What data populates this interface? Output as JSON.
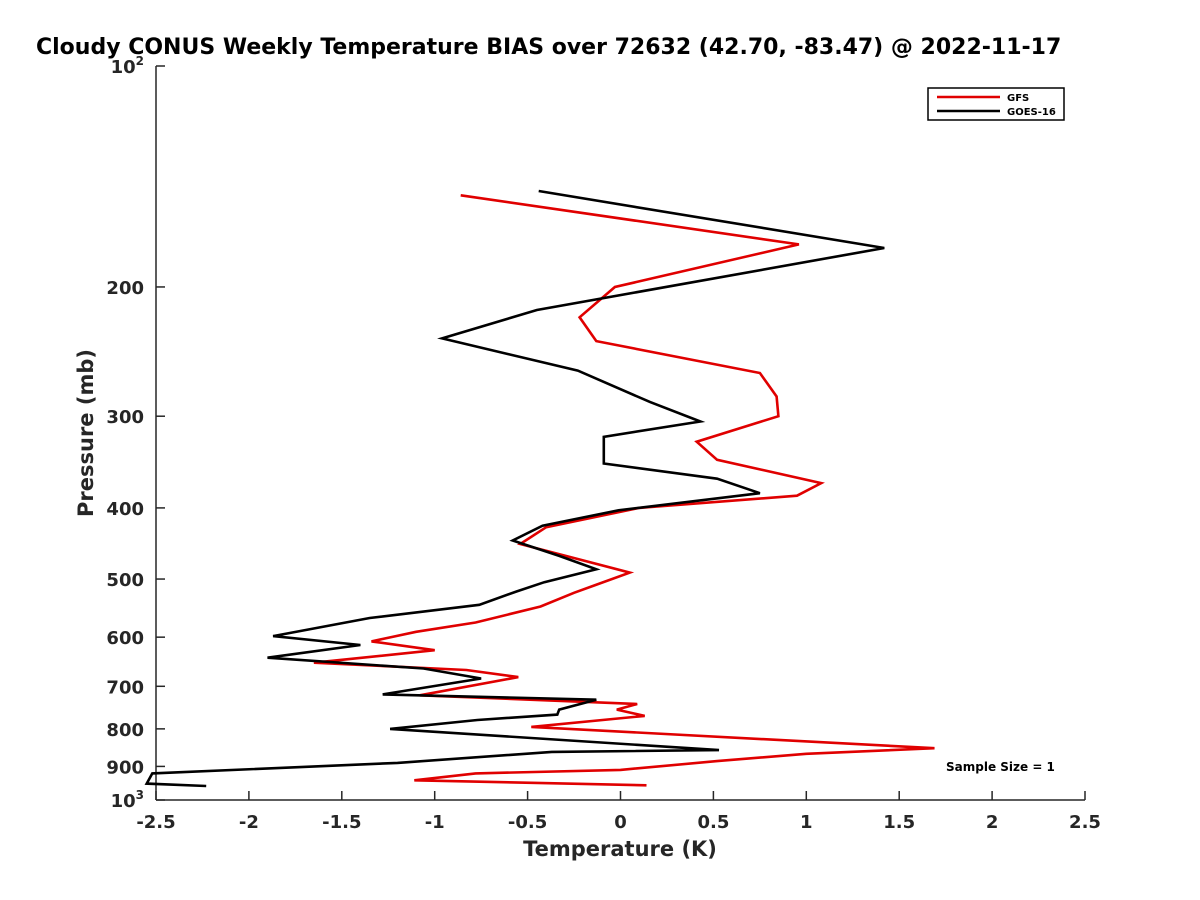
{
  "chart_data": {
    "type": "line",
    "title": "Cloudy CONUS Weekly Temperature BIAS over 72632 (42.70, -83.47) @ 2022-11-17",
    "xlabel": "Temperature (K)",
    "ylabel": "Pressure (mb)",
    "xlim": [
      -2.5,
      2.5
    ],
    "ylim": [
      100,
      1000
    ],
    "y_scale": "log",
    "y_reversed": true,
    "x_ticks": [
      "-2.5",
      "-2",
      "-1.5",
      "-1",
      "-0.5",
      "0",
      "0.5",
      "1",
      "1.5",
      "2",
      "2.5"
    ],
    "y_ticks": [
      {
        "value": 100,
        "base": "10",
        "exp": "2"
      },
      {
        "value": 200,
        "label": "200"
      },
      {
        "value": 300,
        "label": "300"
      },
      {
        "value": 400,
        "label": "400"
      },
      {
        "value": 500,
        "label": "500"
      },
      {
        "value": 600,
        "label": "600"
      },
      {
        "value": 700,
        "label": "700"
      },
      {
        "value": 800,
        "label": "800"
      },
      {
        "value": 900,
        "label": "900"
      },
      {
        "value": 1000,
        "base": "10",
        "exp": "3"
      }
    ],
    "grid": false,
    "legend_position": "top-right",
    "annotation": "Sample Size = 1",
    "series": [
      {
        "name": "GFS",
        "color": "#e00000",
        "points": [
          [
            -0.86,
            150
          ],
          [
            0.96,
            175
          ],
          [
            -0.03,
            200
          ],
          [
            -0.22,
            220
          ],
          [
            -0.13,
            237
          ],
          [
            0.75,
            262
          ],
          [
            0.84,
            282
          ],
          [
            0.85,
            300
          ],
          [
            0.41,
            325
          ],
          [
            0.52,
            344
          ],
          [
            1.08,
            370
          ],
          [
            0.95,
            385
          ],
          [
            0.1,
            400
          ],
          [
            -0.4,
            425
          ],
          [
            -0.54,
            448
          ],
          [
            0.05,
            490
          ],
          [
            -0.14,
            510
          ],
          [
            -0.25,
            522
          ],
          [
            -0.43,
            545
          ],
          [
            -0.78,
            573
          ],
          [
            -1.1,
            590
          ],
          [
            -1.34,
            608
          ],
          [
            -1.0,
            625
          ],
          [
            -1.65,
            650
          ],
          [
            -0.83,
            665
          ],
          [
            -0.55,
            680
          ],
          [
            -1.08,
            720
          ],
          [
            0.09,
            740
          ],
          [
            -0.02,
            753
          ],
          [
            0.13,
            768
          ],
          [
            -0.48,
            795
          ],
          [
            1.69,
            850
          ],
          [
            1.0,
            865
          ],
          [
            0.52,
            885
          ],
          [
            0.0,
            910
          ],
          [
            -0.78,
            920
          ],
          [
            -1.11,
            940
          ],
          [
            0.14,
            955
          ]
        ]
      },
      {
        "name": "GOES-16",
        "color": "#000000",
        "points": [
          [
            -0.44,
            148
          ],
          [
            1.42,
            177
          ],
          [
            -0.45,
            215
          ],
          [
            -0.96,
            235
          ],
          [
            -0.23,
            260
          ],
          [
            0.16,
            287
          ],
          [
            0.43,
            305
          ],
          [
            -0.09,
            320
          ],
          [
            -0.09,
            348
          ],
          [
            0.52,
            365
          ],
          [
            0.75,
            382
          ],
          [
            -0.01,
            403
          ],
          [
            -0.42,
            423
          ],
          [
            -0.58,
            443
          ],
          [
            -0.33,
            465
          ],
          [
            -0.13,
            485
          ],
          [
            -0.41,
            505
          ],
          [
            -0.56,
            520
          ],
          [
            -0.76,
            542
          ],
          [
            -1.35,
            565
          ],
          [
            -1.87,
            598
          ],
          [
            -1.4,
            615
          ],
          [
            -1.9,
            640
          ],
          [
            -1.06,
            662
          ],
          [
            -0.75,
            683
          ],
          [
            -1.28,
            718
          ],
          [
            -0.13,
            730
          ],
          [
            -0.33,
            753
          ],
          [
            -0.34,
            765
          ],
          [
            -0.77,
            778
          ],
          [
            -1.24,
            800
          ],
          [
            0.53,
            855
          ],
          [
            -0.37,
            860
          ],
          [
            -1.2,
            890
          ],
          [
            -2.52,
            920
          ],
          [
            -2.55,
            950
          ],
          [
            -2.23,
            957
          ]
        ]
      }
    ]
  }
}
